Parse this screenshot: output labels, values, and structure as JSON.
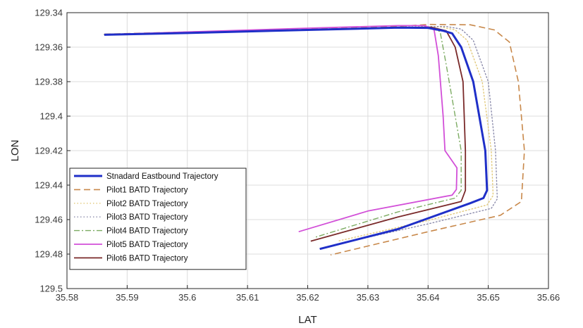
{
  "chart_data": {
    "type": "line",
    "title": "",
    "xlabel": "LAT",
    "ylabel": "LON",
    "xlim": [
      35.58,
      35.66
    ],
    "ylim": [
      129.34,
      129.5
    ],
    "y_reversed": true,
    "grid": true,
    "legend_position": "bottom-left",
    "x_ticks": [
      "35.58",
      "35.59",
      "35.6",
      "35.61",
      "35.62",
      "35.63",
      "35.64",
      "35.65",
      "35.66"
    ],
    "y_ticks": [
      "129.34",
      "129.36",
      "129.38",
      "129.4",
      "129.42",
      "129.44",
      "129.46",
      "129.48",
      "129.5"
    ],
    "series": [
      {
        "name": "Stnadard Eastbound Trajectory",
        "color": "#1f2fc8",
        "style": "solid",
        "width": 3,
        "x": [
          35.5862,
          35.6,
          35.62,
          35.635,
          35.64,
          35.6425,
          35.644,
          35.6455,
          35.6475,
          35.6495,
          35.6498,
          35.6492,
          35.647,
          35.635,
          35.622
        ],
        "y": [
          129.3528,
          129.3518,
          129.35,
          129.3487,
          129.3488,
          129.3505,
          129.352,
          129.36,
          129.38,
          129.42,
          129.443,
          129.4475,
          129.4505,
          129.4655,
          129.477
        ]
      },
      {
        "name": "Pilot1 BATD Trajectory",
        "color": "#c8884a",
        "style": "dashed",
        "width": 1.6,
        "x": [
          35.5862,
          35.6,
          35.62,
          35.635,
          35.64,
          35.647,
          35.651,
          35.6535,
          35.655,
          35.656,
          35.6555,
          35.652,
          35.64,
          35.6238
        ],
        "y": [
          129.3525,
          129.3512,
          129.3495,
          129.348,
          129.3468,
          129.347,
          129.35,
          129.357,
          129.38,
          129.42,
          129.4495,
          129.4575,
          129.467,
          129.4805
        ]
      },
      {
        "name": "Pilot2 BATD Trajectory",
        "color": "#e2c97a",
        "style": "dotted",
        "width": 1.4,
        "x": [
          35.5862,
          35.6,
          35.62,
          35.636,
          35.642,
          35.6445,
          35.6465,
          35.649,
          35.6505,
          35.6508,
          35.6498,
          35.64,
          35.625
        ],
        "y": [
          129.3526,
          129.3515,
          129.3498,
          129.3484,
          129.3482,
          129.35,
          129.356,
          129.38,
          129.42,
          129.446,
          129.4515,
          129.4605,
          129.4725
        ]
      },
      {
        "name": "Pilot3 BATD Trajectory",
        "color": "#8c8cac",
        "style": "dotted",
        "width": 1.4,
        "x": [
          35.5862,
          35.6,
          35.62,
          35.636,
          35.643,
          35.6455,
          35.6475,
          35.65,
          35.6512,
          35.6515,
          35.6505,
          35.64,
          35.6245
        ],
        "y": [
          129.3527,
          129.3516,
          129.3497,
          129.3483,
          129.348,
          129.3495,
          129.356,
          129.38,
          129.42,
          129.448,
          129.4535,
          129.4625,
          129.4745
        ]
      },
      {
        "name": "Pilot4 BATD Trajectory",
        "color": "#7cab62",
        "style": "dashdot",
        "width": 1.4,
        "x": [
          35.5862,
          35.6,
          35.62,
          35.635,
          35.64,
          35.642,
          35.643,
          35.6445,
          35.6455,
          35.6455,
          35.6445,
          35.635,
          35.621
        ],
        "y": [
          129.3526,
          129.3516,
          129.35,
          129.3488,
          129.3485,
          129.351,
          129.37,
          129.4,
          129.42,
          129.443,
          129.4475,
          129.4555,
          129.4705
        ]
      },
      {
        "name": "Pilot5 BATD Trajectory",
        "color": "#d24fd8",
        "style": "solid",
        "width": 1.8,
        "x": [
          35.5862,
          35.6,
          35.62,
          35.635,
          35.6395,
          35.641,
          35.6417,
          35.6425,
          35.6428,
          35.6448,
          35.6447,
          35.644,
          35.63,
          35.6185
        ],
        "y": [
          129.3527,
          129.3512,
          129.349,
          129.3475,
          129.3475,
          129.35,
          129.365,
          129.4,
          129.42,
          129.43,
          129.4425,
          129.4458,
          129.455,
          129.467
        ]
      },
      {
        "name": "Pilot6 BATD Trajectory",
        "color": "#7a2a2a",
        "style": "solid",
        "width": 1.8,
        "x": [
          35.5862,
          35.6,
          35.62,
          35.635,
          35.6405,
          35.643,
          35.6445,
          35.6458,
          35.6462,
          35.6462,
          35.6455,
          35.635,
          35.6205
        ],
        "y": [
          129.3526,
          129.3516,
          129.35,
          129.3486,
          129.3484,
          129.3505,
          129.36,
          129.38,
          129.42,
          129.443,
          129.4495,
          129.4585,
          129.4725
        ]
      }
    ]
  }
}
